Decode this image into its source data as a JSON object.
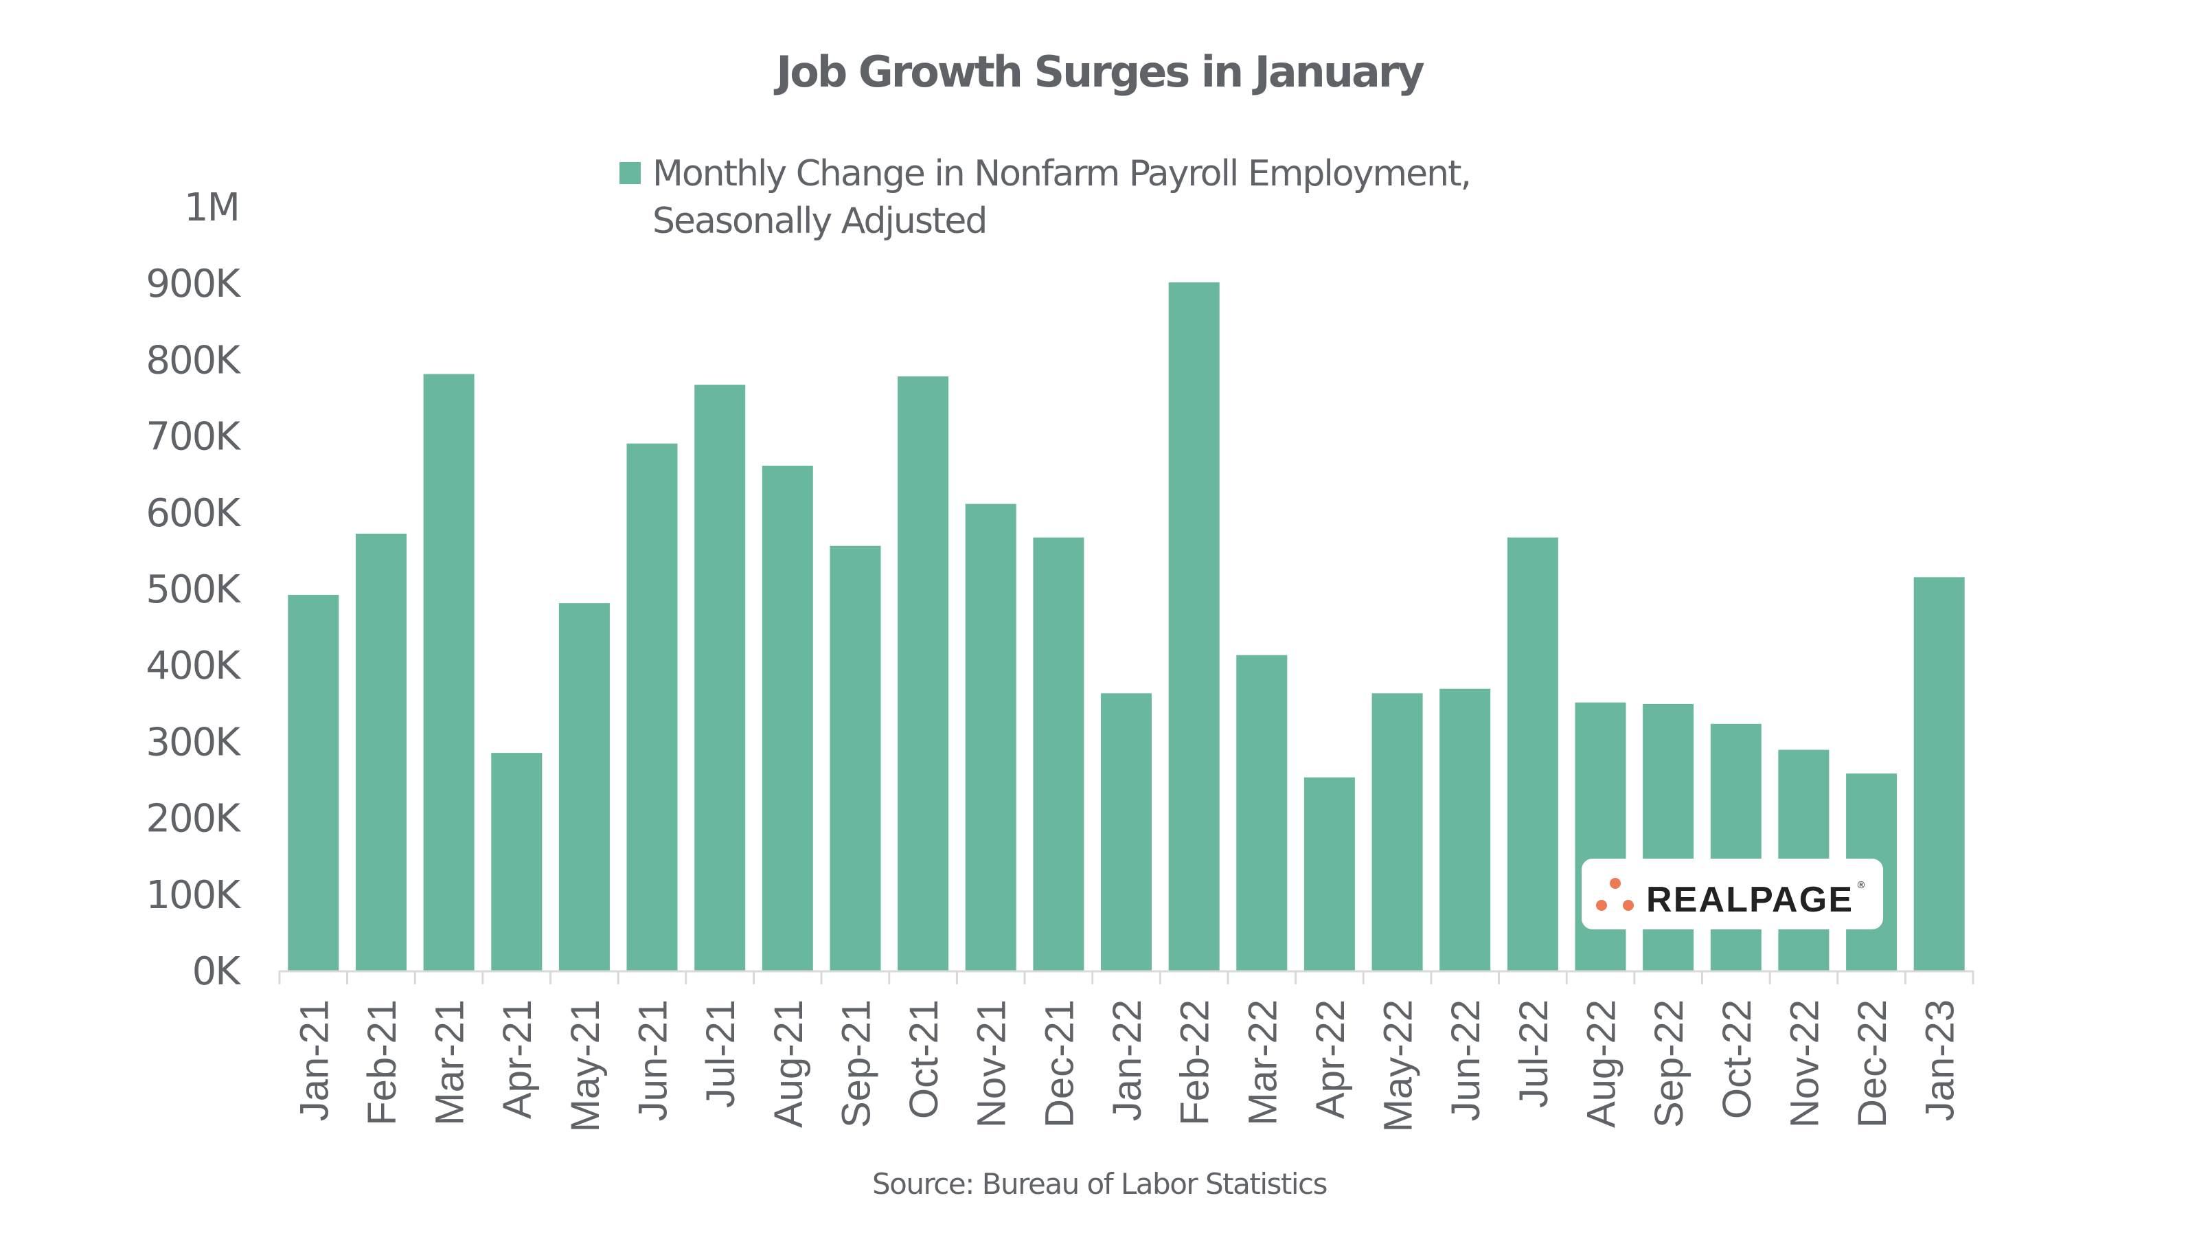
{
  "chart_data": {
    "type": "bar",
    "title": "Job Growth Surges in January",
    "legend": {
      "entries": [
        "Monthly Change in Nonfarm Payroll Employment, Seasonally Adjusted"
      ],
      "lines": [
        "Monthly Change in Nonfarm Payroll Employment,",
        "Seasonally Adjusted"
      ],
      "placement": "top-center"
    },
    "xlabel": "",
    "ylabel": "",
    "ylim": [
      0,
      1000000
    ],
    "yticks": [
      0,
      100000,
      200000,
      300000,
      400000,
      500000,
      600000,
      700000,
      800000,
      900000,
      1000000
    ],
    "ytick_labels": [
      "0K",
      "100K",
      "200K",
      "300K",
      "400K",
      "500K",
      "600K",
      "700K",
      "800K",
      "900K",
      "1M"
    ],
    "grid": false,
    "categories": [
      "Jan-21",
      "Feb-21",
      "Mar-21",
      "Apr-21",
      "May-21",
      "Jun-21",
      "Jul-21",
      "Aug-21",
      "Sep-21",
      "Oct-21",
      "Nov-21",
      "Dec-21",
      "Jan-22",
      "Feb-22",
      "Mar-22",
      "Apr-22",
      "May-22",
      "Jun-22",
      "Jul-22",
      "Aug-22",
      "Sep-22",
      "Oct-22",
      "Nov-22",
      "Dec-22",
      "Jan-23"
    ],
    "series": [
      {
        "name": "Monthly Change in Nonfarm Payroll Employment, Seasonally Adjusted",
        "color": "#69B79E",
        "values": [
          492000,
          572000,
          781000,
          285000,
          481000,
          690000,
          767000,
          661000,
          556000,
          778000,
          611000,
          567000,
          363000,
          901000,
          413000,
          253000,
          363000,
          369000,
          567000,
          351000,
          349000,
          323000,
          289000,
          258000,
          515000
        ]
      }
    ],
    "source": "Source: Bureau of Labor Statistics"
  },
  "logo": {
    "text": "REALPAGE",
    "registered_mark": "®",
    "dot_color": "#EE7A55",
    "icon": "three-dots-icon"
  },
  "colors": {
    "bar": "#69B79E",
    "text": "#5F6368",
    "axis": "#D9D9D9"
  }
}
